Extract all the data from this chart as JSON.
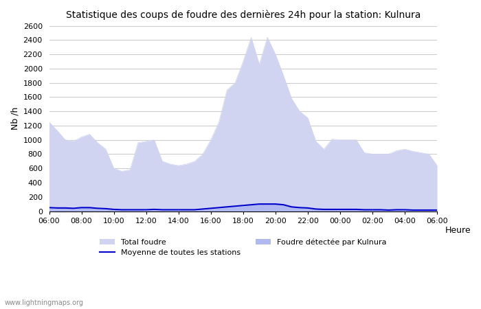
{
  "title": "Statistique des coups de foudre des dernières 24h pour la station: Kulnura",
  "ylabel": "Nb /h",
  "xlabel": "Heure",
  "watermark": "www.lightningmaps.org",
  "ylim": [
    0,
    2600
  ],
  "yticks": [
    0,
    200,
    400,
    600,
    800,
    1000,
    1200,
    1400,
    1600,
    1800,
    2000,
    2200,
    2400,
    2600
  ],
  "xtick_labels": [
    "06:00",
    "08:00",
    "10:00",
    "12:00",
    "14:00",
    "16:00",
    "18:00",
    "20:00",
    "22:00",
    "00:00",
    "02:00",
    "04:00",
    "06:00"
  ],
  "color_total": "#d0d4f0",
  "color_kulnura": "#b0b8f0",
  "color_moyenne": "#0000cc",
  "legend_total": "Total foudre",
  "legend_moyenne": "Moyenne de toutes les stations",
  "legend_kulnura": "Foudre détectée par Kulnura",
  "hours": [
    6,
    6.5,
    7,
    7.5,
    8,
    8.5,
    9,
    9.5,
    10,
    10.5,
    11,
    11.5,
    12,
    12.5,
    13,
    13.5,
    14,
    14.5,
    15,
    15.5,
    16,
    16.5,
    17,
    17.5,
    18,
    18.5,
    19,
    19.5,
    20,
    20.5,
    21,
    21.5,
    22,
    22.5,
    23,
    23.5,
    24,
    24.5,
    25,
    25.5,
    26,
    26.5,
    27,
    27.5,
    28,
    28.5,
    29,
    29.5,
    30
  ],
  "total_foudre": [
    1250,
    1130,
    1000,
    980,
    1040,
    1080,
    960,
    870,
    600,
    560,
    580,
    960,
    980,
    1000,
    700,
    660,
    640,
    660,
    700,
    800,
    1000,
    1250,
    1700,
    1800,
    2100,
    2440,
    2060,
    2440,
    2200,
    1900,
    1580,
    1400,
    1310,
    980,
    870,
    1010,
    1000,
    1000,
    1000,
    820,
    800,
    800,
    800,
    850,
    870,
    840,
    820,
    800,
    640
  ],
  "kulnura": [
    40,
    35,
    40,
    30,
    45,
    50,
    30,
    25,
    20,
    15,
    10,
    10,
    10,
    15,
    10,
    10,
    10,
    10,
    10,
    20,
    30,
    40,
    50,
    60,
    70,
    85,
    100,
    95,
    100,
    90,
    55,
    45,
    40,
    25,
    20,
    20,
    20,
    20,
    20,
    15,
    15,
    15,
    10,
    15,
    15,
    10,
    10,
    10,
    10
  ],
  "moyenne": [
    50,
    45,
    45,
    40,
    50,
    50,
    40,
    35,
    25,
    20,
    20,
    20,
    20,
    25,
    20,
    20,
    20,
    20,
    20,
    30,
    40,
    50,
    60,
    70,
    80,
    90,
    100,
    100,
    100,
    90,
    60,
    50,
    45,
    30,
    25,
    25,
    25,
    25,
    25,
    20,
    20,
    20,
    15,
    20,
    20,
    15,
    15,
    15,
    15
  ]
}
